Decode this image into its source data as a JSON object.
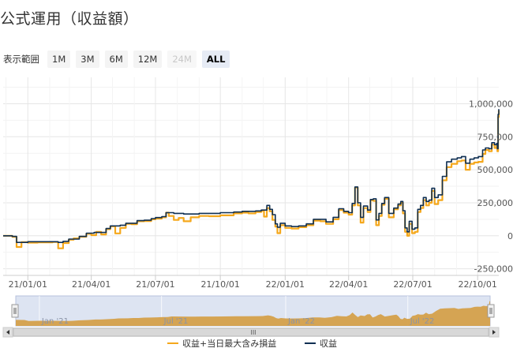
{
  "page": {
    "title": "公式運用（収益額）"
  },
  "range_selector": {
    "label": "表示範囲",
    "buttons": [
      {
        "label": "1M",
        "state": "normal"
      },
      {
        "label": "3M",
        "state": "normal"
      },
      {
        "label": "6M",
        "state": "normal"
      },
      {
        "label": "12M",
        "state": "normal"
      },
      {
        "label": "24M",
        "state": "disabled"
      },
      {
        "label": "ALL",
        "state": "selected"
      }
    ]
  },
  "navigator": {
    "labels": [
      "Jan '21",
      "Jul '21",
      "Jan '22",
      "Jul '22"
    ],
    "scroll_grip": "III"
  },
  "colors": {
    "profit_line": "#0f2f52",
    "profit_with_loss_line": "#f5a81c",
    "navigator_fill": "#d4a04a",
    "navigator_bg": "#dde4f2"
  },
  "chart_data": {
    "type": "line",
    "x_tick_labels": [
      "21/01/01",
      "21/04/01",
      "21/07/01",
      "21/10/01",
      "22/01/01",
      "22/04/01",
      "22/07/01",
      "22/10/01"
    ],
    "y_tick_labels": [
      "-250,000",
      "0",
      "250,000",
      "500,000",
      "750,000",
      "1,000,000"
    ],
    "y_ticks": [
      -250000,
      0,
      250000,
      500000,
      750000,
      1000000
    ],
    "ylim": [
      -300000,
      1200000
    ],
    "xlim": [
      "2020-11-27",
      "2022-10-31"
    ],
    "legend_position": "bottom-center",
    "grid": true,
    "series": [
      {
        "name": "収益+当日最大含み損益",
        "color": "#f5a81c",
        "points": [
          [
            "2020-11-27",
            0
          ],
          [
            "2020-12-10",
            -8000
          ],
          [
            "2020-12-16",
            -85000
          ],
          [
            "2020-12-23",
            -48000
          ],
          [
            "2021-01-01",
            -52000
          ],
          [
            "2021-01-15",
            -50000
          ],
          [
            "2021-02-05",
            -47000
          ],
          [
            "2021-02-13",
            -95000
          ],
          [
            "2021-02-20",
            -55000
          ],
          [
            "2021-02-28",
            -30000
          ],
          [
            "2021-03-07",
            -20000
          ],
          [
            "2021-03-15",
            -7000
          ],
          [
            "2021-03-25",
            15000
          ],
          [
            "2021-04-01",
            5000
          ],
          [
            "2021-04-08",
            30000
          ],
          [
            "2021-04-15",
            10000
          ],
          [
            "2021-04-22",
            50000
          ],
          [
            "2021-04-28",
            72000
          ],
          [
            "2021-05-05",
            18000
          ],
          [
            "2021-05-12",
            60000
          ],
          [
            "2021-05-20",
            90000
          ],
          [
            "2021-05-28",
            88000
          ],
          [
            "2021-06-05",
            110000
          ],
          [
            "2021-06-15",
            112000
          ],
          [
            "2021-06-25",
            125000
          ],
          [
            "2021-07-01",
            130000
          ],
          [
            "2021-07-10",
            140000
          ],
          [
            "2021-07-16",
            175000
          ],
          [
            "2021-07-20",
            150000
          ],
          [
            "2021-07-27",
            120000
          ],
          [
            "2021-08-03",
            135000
          ],
          [
            "2021-08-10",
            110000
          ],
          [
            "2021-08-20",
            140000
          ],
          [
            "2021-09-01",
            150000
          ],
          [
            "2021-09-15",
            148000
          ],
          [
            "2021-10-01",
            155000
          ],
          [
            "2021-10-10",
            155000
          ],
          [
            "2021-10-20",
            170000
          ],
          [
            "2021-11-01",
            175000
          ],
          [
            "2021-11-10",
            170000
          ],
          [
            "2021-11-20",
            180000
          ],
          [
            "2021-11-28",
            188000
          ],
          [
            "2021-12-02",
            145000
          ],
          [
            "2021-12-06",
            210000
          ],
          [
            "2021-12-10",
            185000
          ],
          [
            "2021-12-14",
            120000
          ],
          [
            "2021-12-18",
            70000
          ],
          [
            "2021-12-21",
            20000
          ],
          [
            "2021-12-25",
            80000
          ],
          [
            "2022-01-01",
            60000
          ],
          [
            "2022-01-10",
            55000
          ],
          [
            "2022-01-20",
            65000
          ],
          [
            "2022-01-31",
            80000
          ],
          [
            "2022-02-10",
            115000
          ],
          [
            "2022-02-20",
            110000
          ],
          [
            "2022-02-28",
            90000
          ],
          [
            "2022-03-10",
            125000
          ],
          [
            "2022-03-18",
            195000
          ],
          [
            "2022-03-25",
            175000
          ],
          [
            "2022-04-01",
            160000
          ],
          [
            "2022-04-06",
            230000
          ],
          [
            "2022-04-10",
            365000
          ],
          [
            "2022-04-14",
            230000
          ],
          [
            "2022-04-18",
            100000
          ],
          [
            "2022-04-22",
            210000
          ],
          [
            "2022-04-28",
            180000
          ],
          [
            "2022-05-02",
            270000
          ],
          [
            "2022-05-06",
            265000
          ],
          [
            "2022-05-10",
            80000
          ],
          [
            "2022-05-14",
            150000
          ],
          [
            "2022-05-18",
            235000
          ],
          [
            "2022-05-22",
            280000
          ],
          [
            "2022-05-28",
            140000
          ],
          [
            "2022-06-04",
            200000
          ],
          [
            "2022-06-10",
            230000
          ],
          [
            "2022-06-14",
            250000
          ],
          [
            "2022-06-17",
            170000
          ],
          [
            "2022-06-20",
            30000
          ],
          [
            "2022-06-23",
            0
          ],
          [
            "2022-06-26",
            90000
          ],
          [
            "2022-06-30",
            20000
          ],
          [
            "2022-07-04",
            30000
          ],
          [
            "2022-07-08",
            180000
          ],
          [
            "2022-07-12",
            210000
          ],
          [
            "2022-07-16",
            270000
          ],
          [
            "2022-07-20",
            230000
          ],
          [
            "2022-07-24",
            250000
          ],
          [
            "2022-07-28",
            340000
          ],
          [
            "2022-08-01",
            240000
          ],
          [
            "2022-08-06",
            270000
          ],
          [
            "2022-08-12",
            420000
          ],
          [
            "2022-08-18",
            520000
          ],
          [
            "2022-08-25",
            545000
          ],
          [
            "2022-09-02",
            565000
          ],
          [
            "2022-09-08",
            570000
          ],
          [
            "2022-09-14",
            500000
          ],
          [
            "2022-09-20",
            545000
          ],
          [
            "2022-09-26",
            555000
          ],
          [
            "2022-10-02",
            560000
          ],
          [
            "2022-10-08",
            620000
          ],
          [
            "2022-10-12",
            650000
          ],
          [
            "2022-10-17",
            640000
          ],
          [
            "2022-10-21",
            690000
          ],
          [
            "2022-10-25",
            665000
          ],
          [
            "2022-10-28",
            680000
          ],
          [
            "2022-10-29",
            640000
          ],
          [
            "2022-10-30",
            900000
          ],
          [
            "2022-10-31",
            950000
          ]
        ]
      },
      {
        "name": "収益",
        "color": "#0f2f52",
        "points": [
          [
            "2020-11-27",
            0
          ],
          [
            "2020-12-10",
            -5000
          ],
          [
            "2020-12-16",
            -50000
          ],
          [
            "2021-01-01",
            -45000
          ],
          [
            "2021-01-20",
            -45000
          ],
          [
            "2021-02-13",
            -50000
          ],
          [
            "2021-02-20",
            -42000
          ],
          [
            "2021-02-28",
            -25000
          ],
          [
            "2021-03-15",
            -5000
          ],
          [
            "2021-03-25",
            20000
          ],
          [
            "2021-04-05",
            25000
          ],
          [
            "2021-04-22",
            55000
          ],
          [
            "2021-04-28",
            75000
          ],
          [
            "2021-05-12",
            80000
          ],
          [
            "2021-05-20",
            95000
          ],
          [
            "2021-05-28",
            95000
          ],
          [
            "2021-06-05",
            115000
          ],
          [
            "2021-06-15",
            118000
          ],
          [
            "2021-06-25",
            130000
          ],
          [
            "2021-07-01",
            138000
          ],
          [
            "2021-07-10",
            145000
          ],
          [
            "2021-07-16",
            175000
          ],
          [
            "2021-07-27",
            170000
          ],
          [
            "2021-08-10",
            165000
          ],
          [
            "2021-08-20",
            165000
          ],
          [
            "2021-09-01",
            170000
          ],
          [
            "2021-09-15",
            170000
          ],
          [
            "2021-10-01",
            175000
          ],
          [
            "2021-10-20",
            180000
          ],
          [
            "2021-11-01",
            185000
          ],
          [
            "2021-11-20",
            188000
          ],
          [
            "2021-11-28",
            195000
          ],
          [
            "2021-12-06",
            230000
          ],
          [
            "2021-12-10",
            200000
          ],
          [
            "2021-12-14",
            160000
          ],
          [
            "2021-12-18",
            90000
          ],
          [
            "2021-12-21",
            65000
          ],
          [
            "2021-12-25",
            95000
          ],
          [
            "2022-01-01",
            75000
          ],
          [
            "2022-01-10",
            70000
          ],
          [
            "2022-01-20",
            75000
          ],
          [
            "2022-01-31",
            90000
          ],
          [
            "2022-02-10",
            125000
          ],
          [
            "2022-02-20",
            125000
          ],
          [
            "2022-02-28",
            105000
          ],
          [
            "2022-03-10",
            140000
          ],
          [
            "2022-03-18",
            205000
          ],
          [
            "2022-03-25",
            185000
          ],
          [
            "2022-04-01",
            175000
          ],
          [
            "2022-04-06",
            245000
          ],
          [
            "2022-04-10",
            370000
          ],
          [
            "2022-04-14",
            250000
          ],
          [
            "2022-04-18",
            140000
          ],
          [
            "2022-04-22",
            225000
          ],
          [
            "2022-04-28",
            195000
          ],
          [
            "2022-05-02",
            275000
          ],
          [
            "2022-05-06",
            280000
          ],
          [
            "2022-05-10",
            120000
          ],
          [
            "2022-05-14",
            170000
          ],
          [
            "2022-05-18",
            245000
          ],
          [
            "2022-05-22",
            290000
          ],
          [
            "2022-05-28",
            170000
          ],
          [
            "2022-06-04",
            210000
          ],
          [
            "2022-06-10",
            240000
          ],
          [
            "2022-06-14",
            260000
          ],
          [
            "2022-06-17",
            190000
          ],
          [
            "2022-06-20",
            60000
          ],
          [
            "2022-06-23",
            30000
          ],
          [
            "2022-06-26",
            110000
          ],
          [
            "2022-06-30",
            50000
          ],
          [
            "2022-07-04",
            60000
          ],
          [
            "2022-07-08",
            200000
          ],
          [
            "2022-07-12",
            230000
          ],
          [
            "2022-07-16",
            290000
          ],
          [
            "2022-07-20",
            260000
          ],
          [
            "2022-07-24",
            270000
          ],
          [
            "2022-07-28",
            360000
          ],
          [
            "2022-08-01",
            290000
          ],
          [
            "2022-08-06",
            310000
          ],
          [
            "2022-08-12",
            450000
          ],
          [
            "2022-08-18",
            560000
          ],
          [
            "2022-08-25",
            580000
          ],
          [
            "2022-09-02",
            590000
          ],
          [
            "2022-09-08",
            600000
          ],
          [
            "2022-09-14",
            550000
          ],
          [
            "2022-09-20",
            580000
          ],
          [
            "2022-09-26",
            590000
          ],
          [
            "2022-10-02",
            600000
          ],
          [
            "2022-10-08",
            650000
          ],
          [
            "2022-10-12",
            665000
          ],
          [
            "2022-10-17",
            660000
          ],
          [
            "2022-10-21",
            705000
          ],
          [
            "2022-10-25",
            690000
          ],
          [
            "2022-10-28",
            700000
          ],
          [
            "2022-10-29",
            660000
          ],
          [
            "2022-10-30",
            920000
          ],
          [
            "2022-10-31",
            960000
          ]
        ]
      }
    ]
  }
}
